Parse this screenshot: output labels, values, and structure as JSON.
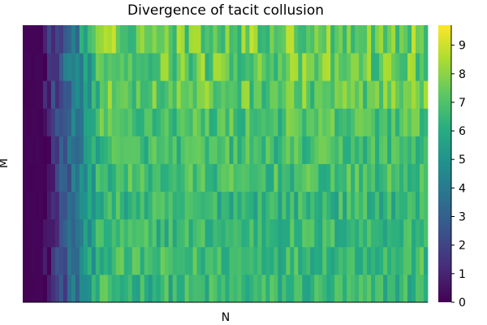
{
  "chart_data": {
    "type": "heatmap",
    "title": "Divergence of tacit collusion",
    "xlabel": "N",
    "ylabel": "M",
    "colormap": "viridis",
    "colorbar": {
      "range": [
        0,
        9.7
      ],
      "ticks": [
        0,
        1,
        2,
        3,
        4,
        5,
        6,
        7,
        8,
        9
      ],
      "tick_labels": [
        "0",
        "1",
        "2",
        "3",
        "4",
        "5",
        "6",
        "7",
        "8",
        "9"
      ],
      "placement": "right"
    },
    "grid": false,
    "rows": 10,
    "columns": 100,
    "row_profiles": [
      {
        "row": 1,
        "mean_plateau": 6.4,
        "noise": 1.1
      },
      {
        "row": 2,
        "mean_plateau": 6.6,
        "noise": 1.0
      },
      {
        "row": 3,
        "mean_plateau": 6.5,
        "noise": 1.0
      },
      {
        "row": 4,
        "mean_plateau": 6.4,
        "noise": 1.0
      },
      {
        "row": 5,
        "mean_plateau": 6.7,
        "noise": 1.0
      },
      {
        "row": 6,
        "mean_plateau": 6.7,
        "noise": 1.0
      },
      {
        "row": 7,
        "mean_plateau": 6.9,
        "noise": 1.1
      },
      {
        "row": 8,
        "mean_plateau": 7.3,
        "noise": 1.2
      },
      {
        "row": 9,
        "mean_plateau": 7.4,
        "noise": 1.3
      },
      {
        "row": 10,
        "mean_plateau": 7.6,
        "noise": 1.4
      }
    ],
    "column_ramp": {
      "zero_until_column": 5,
      "plateau_from_column": 20
    }
  }
}
